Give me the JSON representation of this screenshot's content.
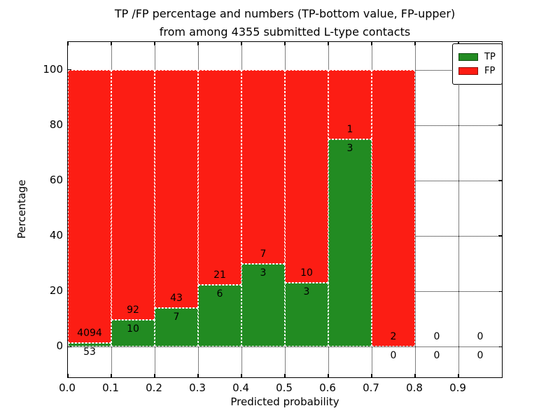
{
  "title": {
    "line1": "TP /FP percentage and numbers (TP-bottom value, FP-upper)",
    "line2": "from among 4355 submitted L-type contacts"
  },
  "chart_data": {
    "type": "bar",
    "subtype": "stacked-percentage-histogram",
    "title": "TP /FP percentage and numbers (TP-bottom value, FP-upper) from among 4355 submitted L-type contacts",
    "total_contacts": 4355,
    "xlabel": "Predicted probability",
    "ylabel": "Percentage",
    "xlim": [
      0.0,
      1.0
    ],
    "ylim": [
      -11,
      110
    ],
    "x_ticks": [
      0.0,
      0.1,
      0.2,
      0.3,
      0.4,
      0.5,
      0.6,
      0.7,
      0.8,
      0.9
    ],
    "x_tick_labels": [
      "0.0",
      "0.1",
      "0.2",
      "0.3",
      "0.4",
      "0.5",
      "0.6",
      "0.7",
      "0.8",
      "0.9"
    ],
    "y_ticks": [
      0,
      20,
      40,
      60,
      80,
      100
    ],
    "y_tick_labels": [
      "0",
      "20",
      "40",
      "60",
      "80",
      "100"
    ],
    "grid": true,
    "grid_style": "dotted",
    "bar_edge": {
      "color": "#ffffff",
      "style": "dashed"
    },
    "legend": {
      "position": "upper-right"
    },
    "series": [
      {
        "name": "TP",
        "color": "#228b22"
      },
      {
        "name": "FP",
        "color": "#fc1d14"
      }
    ],
    "bins": [
      {
        "x0": 0.0,
        "x1": 0.1,
        "tp": 53,
        "fp": 4094,
        "tp_pct": 1.28,
        "fp_pct": 98.72
      },
      {
        "x0": 0.1,
        "x1": 0.2,
        "tp": 10,
        "fp": 92,
        "tp_pct": 9.8,
        "fp_pct": 90.2
      },
      {
        "x0": 0.2,
        "x1": 0.3,
        "tp": 7,
        "fp": 43,
        "tp_pct": 14.0,
        "fp_pct": 86.0
      },
      {
        "x0": 0.3,
        "x1": 0.4,
        "tp": 6,
        "fp": 21,
        "tp_pct": 22.22,
        "fp_pct": 77.78
      },
      {
        "x0": 0.4,
        "x1": 0.5,
        "tp": 3,
        "fp": 7,
        "tp_pct": 30.0,
        "fp_pct": 70.0
      },
      {
        "x0": 0.5,
        "x1": 0.6,
        "tp": 3,
        "fp": 10,
        "tp_pct": 23.08,
        "fp_pct": 76.92
      },
      {
        "x0": 0.6,
        "x1": 0.7,
        "tp": 3,
        "fp": 1,
        "tp_pct": 75.0,
        "fp_pct": 25.0
      },
      {
        "x0": 0.7,
        "x1": 0.8,
        "tp": 0,
        "fp": 2,
        "tp_pct": 0.0,
        "fp_pct": 100.0
      },
      {
        "x0": 0.8,
        "x1": 0.9,
        "tp": 0,
        "fp": 0,
        "tp_pct": 0.0,
        "fp_pct": 0.0
      },
      {
        "x0": 0.9,
        "x1": 1.0,
        "tp": 0,
        "fp": 0,
        "tp_pct": 0.0,
        "fp_pct": 0.0
      }
    ]
  }
}
